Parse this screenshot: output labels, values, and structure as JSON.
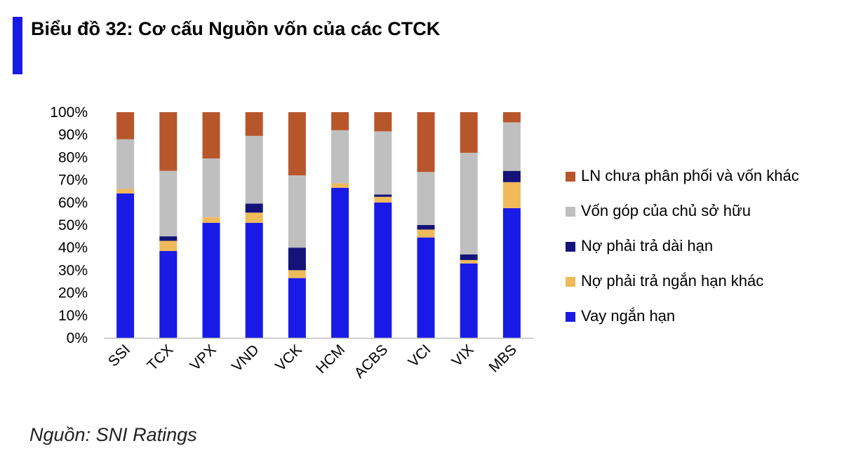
{
  "title": "Biểu đồ 32: Cơ cấu Nguồn vốn của các CTCK",
  "source": "Nguồn: SNI Ratings",
  "colors": {
    "title_bar": "#1A1AE6",
    "axis": "#BFBFBF"
  },
  "chart_data": {
    "type": "bar",
    "stacked": true,
    "percent": true,
    "categories": [
      "SSI",
      "TCX",
      "VPX",
      "VND",
      "VCK",
      "HCM",
      "ACBS",
      "VCI",
      "VIX",
      "MBS"
    ],
    "ylim": [
      0,
      100
    ],
    "yticks": [
      "0%",
      "10%",
      "20%",
      "30%",
      "40%",
      "50%",
      "60%",
      "70%",
      "80%",
      "90%",
      "100%"
    ],
    "grid": false,
    "legend_position": "right",
    "series": [
      {
        "name": "Vay ngắn hạn",
        "color": "#1A1AE6",
        "values": [
          64,
          38.5,
          51,
          51,
          26.5,
          66.5,
          60,
          44.5,
          33,
          57.5
        ]
      },
      {
        "name": "Nợ phải trả ngắn hạn khác",
        "color": "#F0B95A",
        "values": [
          2,
          4.5,
          2.5,
          4.5,
          3.5,
          2,
          2.5,
          3.5,
          1.5,
          11.5
        ]
      },
      {
        "name": "Nợ phải trả dài hạn",
        "color": "#13137A",
        "values": [
          0,
          2,
          0,
          4,
          10,
          0,
          1,
          2,
          2.5,
          5
        ]
      },
      {
        "name": "Vốn góp của chủ sở hữu",
        "color": "#BFBFBF",
        "values": [
          22,
          29,
          26,
          30,
          32,
          23.5,
          28,
          23.5,
          45,
          21.5
        ]
      },
      {
        "name": "LN chưa phân phối và vốn khác",
        "color": "#B8562B",
        "values": [
          12,
          26,
          20.5,
          10.5,
          28,
          8,
          8.5,
          26.5,
          18,
          4.5
        ]
      }
    ]
  }
}
